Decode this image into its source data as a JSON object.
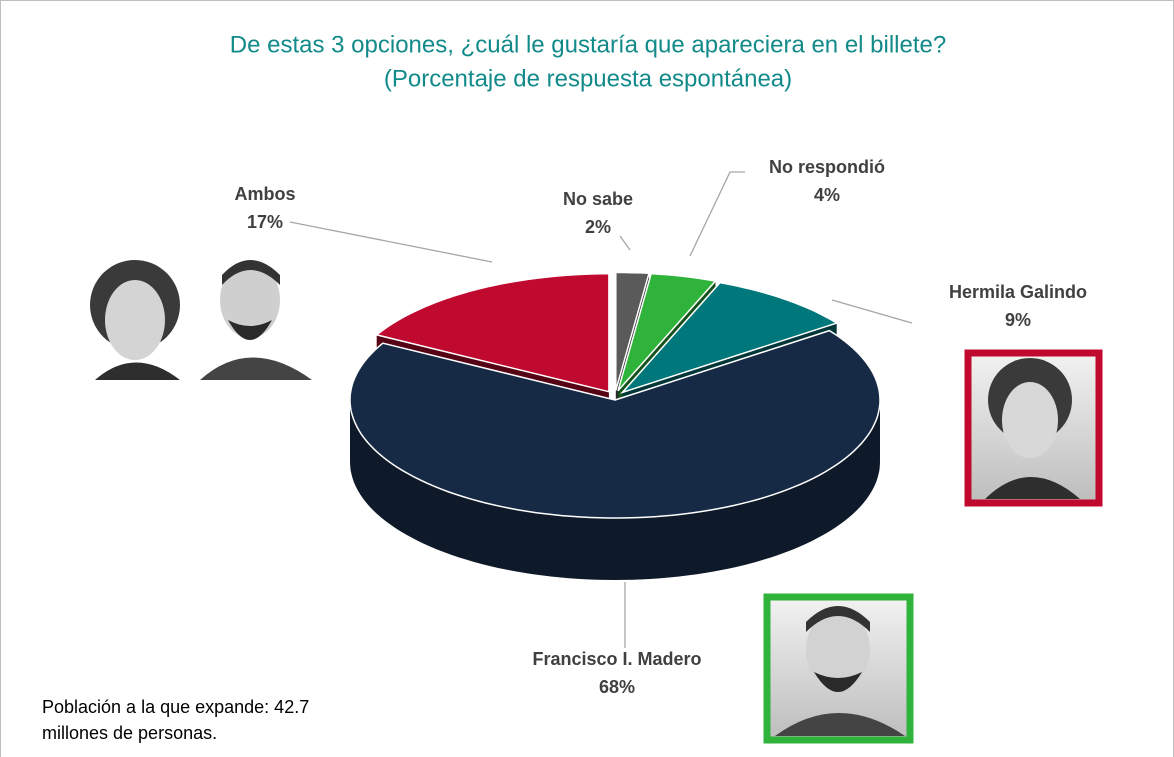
{
  "chart_data": {
    "type": "pie",
    "title": "De estas 3 opciones, ¿cuál le gustaría que apareciera en el billete?",
    "subtitle": "(Porcentaje de respuesta espontánea)",
    "categories": [
      "No sabe",
      "No respondió",
      "Hermila Galindo",
      "Francisco I. Madero",
      "Ambos"
    ],
    "values": [
      2,
      4,
      9,
      68,
      17
    ],
    "value_labels": [
      "2%",
      "4%",
      "9%",
      "68%",
      "17%"
    ],
    "colors": [
      "#5a5a5a",
      "#2fb33b",
      "#00787b",
      "#172a45",
      "#c0092e"
    ],
    "annotation": "Población a la que expande: 42.7 millones de personas."
  }
}
